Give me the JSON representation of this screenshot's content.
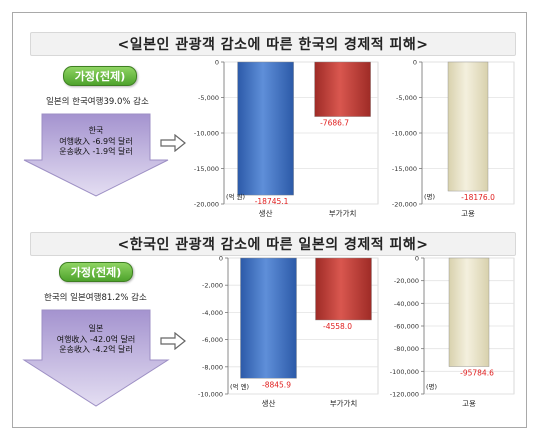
{
  "colors": {
    "production": "#3f72c4",
    "value_added": "#c23a34",
    "employment": "#e9e4c8",
    "negative_label": "#e02020",
    "arrow_fill": "#b7a8d6",
    "pill_green": "#5cb336"
  },
  "panels": [
    {
      "title": "<일본인 관광객 감소에 따른 한국의 경제적 피해>",
      "assumption_label": "가정(전제)",
      "condition": "일본의 한국여행39.0% 감소",
      "arrow_lines": [
        "한국",
        "여행收入 -6.9억 달러",
        "운송收入 -1.9억 달러"
      ]
    },
    {
      "title": "<한국인 관광객 감소에 따른 일본의 경제적 피해>",
      "assumption_label": "가정(전제)",
      "condition": "한국의 일본여행81.2% 감소",
      "arrow_lines": [
        "일본",
        "여행收入 -42.0억 달러",
        "운송收入 -4.2억 달러"
      ]
    }
  ],
  "chart_data": [
    {
      "type": "bar",
      "categories": [
        "생산",
        "부가가치"
      ],
      "values": [
        -18745.1,
        -7686.7
      ],
      "value_labels": [
        "-18745.1",
        "-7686.7"
      ],
      "ylim": [
        -20000,
        0
      ],
      "yticks": [
        "0",
        "-5,000",
        "-10,000",
        "-15,000",
        "-20,000"
      ],
      "ytick_values": [
        0,
        -5000,
        -10000,
        -15000,
        -20000
      ],
      "unit": "(억 원)",
      "colors": [
        "#3f72c4",
        "#c23a34"
      ]
    },
    {
      "type": "bar",
      "categories": [
        "고용"
      ],
      "values": [
        -18176.0
      ],
      "value_labels": [
        "-18176.0"
      ],
      "ylim": [
        -20000,
        0
      ],
      "yticks": [
        "0",
        "-5,000",
        "-10,000",
        "-15,000",
        "-20,000"
      ],
      "ytick_values": [
        0,
        -5000,
        -10000,
        -15000,
        -20000
      ],
      "unit": "(명)",
      "colors": [
        "#e9e4c8"
      ]
    },
    {
      "type": "bar",
      "categories": [
        "생산",
        "부가가치"
      ],
      "values": [
        -8845.9,
        -4558.0
      ],
      "value_labels": [
        "-8845.9",
        "-4558.0"
      ],
      "ylim": [
        -10000,
        0
      ],
      "yticks": [
        "0",
        "-2,000",
        "-4,000",
        "-6,000",
        "-8,000",
        "-10,000"
      ],
      "ytick_values": [
        0,
        -2000,
        -4000,
        -6000,
        -8000,
        -10000
      ],
      "unit": "(억 엔)",
      "colors": [
        "#3f72c4",
        "#c23a34"
      ]
    },
    {
      "type": "bar",
      "categories": [
        "고용"
      ],
      "values": [
        -95784.6
      ],
      "value_labels": [
        "-95784.6"
      ],
      "ylim": [
        -120000,
        0
      ],
      "yticks": [
        "0",
        "-20,000",
        "-40,000",
        "-60,000",
        "-80,000",
        "-100,000",
        "-120,000"
      ],
      "ytick_values": [
        0,
        -20000,
        -40000,
        -60000,
        -80000,
        -100000,
        -120000
      ],
      "unit": "(명)",
      "colors": [
        "#e9e4c8"
      ]
    }
  ]
}
